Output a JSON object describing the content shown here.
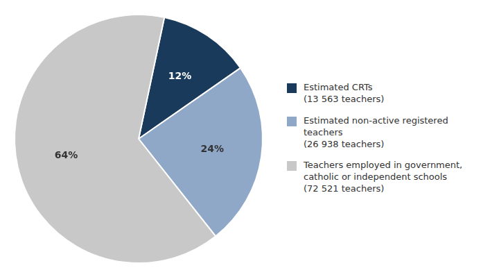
{
  "chart_data": {
    "type": "pie",
    "categories": [
      "Estimated CRTs\n(13 563 teachers)",
      "Estimated non-active registered teachers\n(26 938 teachers)",
      "Teachers employed in government,\ncatholic or independent schools\n(72 521 teachers)"
    ],
    "values": [
      12,
      24,
      64
    ],
    "value_labels": [
      "12%",
      "24%",
      "64%"
    ],
    "colors": [
      "#1a3a5c",
      "#8fa8c8",
      "#c8c8c8"
    ],
    "data_labels": true,
    "legend": "right"
  }
}
